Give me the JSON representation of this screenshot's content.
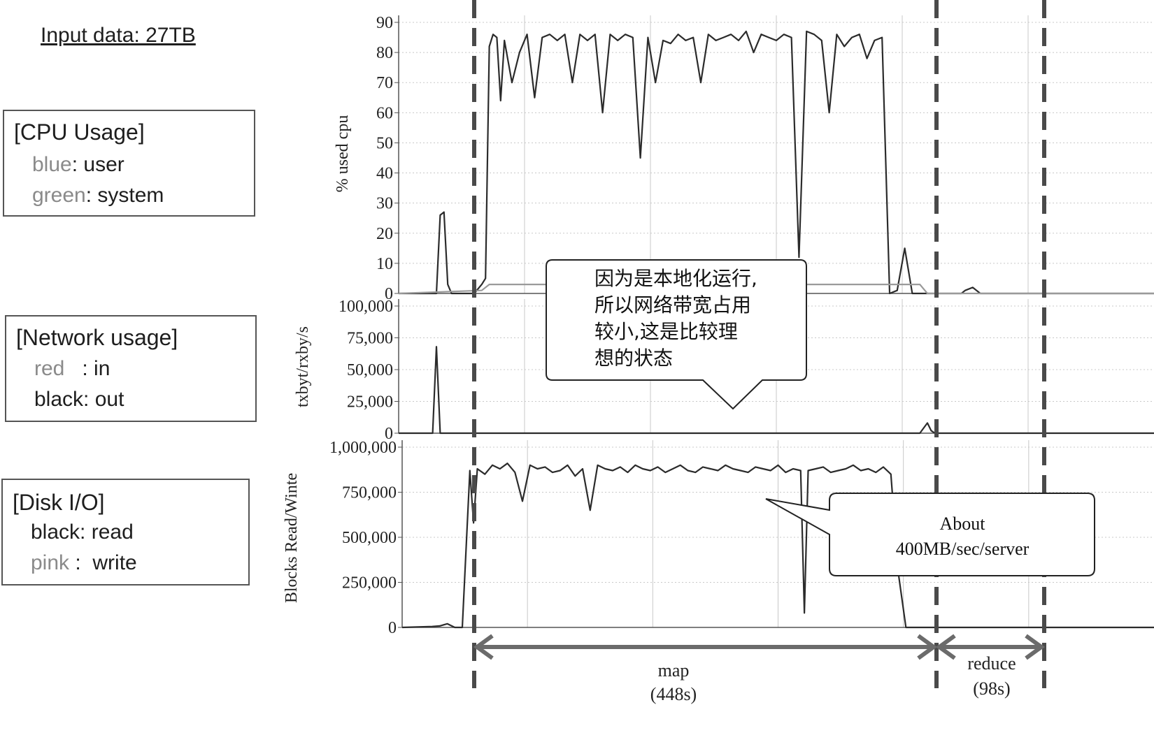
{
  "title": "Input data: 27TB",
  "legends": {
    "cpu": {
      "heading": "[CPU Usage]",
      "items": [
        {
          "color_name": "blue",
          "label": ": user"
        },
        {
          "color_name": "green",
          "label": ": system"
        }
      ]
    },
    "network": {
      "heading": "[Network usage]",
      "items": [
        {
          "color_name": "red",
          "label": "   : in"
        },
        {
          "color_name": "black",
          "label": ": out"
        }
      ]
    },
    "disk": {
      "heading": "[Disk I/O]",
      "items": [
        {
          "color_name": "black",
          "label": ": read"
        },
        {
          "color_name": "pink",
          "label": " :  write"
        }
      ]
    }
  },
  "callouts": {
    "network_note": [
      "因为是本地化运行,",
      "所以网络带宽占用",
      "较小,这是比较理",
      "想的状态"
    ],
    "disk_note": [
      "About",
      "400MB/sec/server"
    ]
  },
  "phases": {
    "map": {
      "label": "map",
      "duration": "(448s)"
    },
    "reduce": {
      "label": "reduce",
      "duration": "(98s)"
    }
  },
  "colors": {
    "line": "#2b2b2b",
    "system_line": "#9a9a9a",
    "grid": "#c8c8c8",
    "dash": "#4a4a4a",
    "arrow": "#6b6b6b"
  },
  "chart_data": [
    {
      "type": "line",
      "ylabel": "% used cpu",
      "ylim": [
        0,
        90
      ],
      "yticks": [
        "90",
        "80",
        "70",
        "60",
        "50",
        "40",
        "30",
        "20",
        "10",
        "0"
      ],
      "xlim": [
        0,
        100
      ],
      "grid": true,
      "series": [
        {
          "name": "user",
          "x": [
            0,
            5,
            5.5,
            6,
            6.5,
            7,
            8,
            10,
            11,
            11.5,
            12,
            12.5,
            13,
            13.5,
            14,
            15,
            16,
            17,
            18,
            19,
            20,
            21,
            22,
            23,
            24,
            25,
            26,
            27,
            28,
            29,
            30,
            31,
            32,
            33,
            34,
            35,
            36,
            37,
            38,
            39,
            40,
            41,
            42,
            43,
            44,
            45,
            46,
            47,
            48,
            49,
            50,
            51,
            52,
            53,
            54,
            55,
            56,
            57,
            58,
            59,
            60,
            61,
            62,
            63,
            64,
            65,
            66,
            67,
            68,
            69,
            70,
            71,
            72,
            73,
            74,
            74.5,
            75,
            76,
            77,
            78,
            79,
            80,
            81,
            82,
            83,
            84,
            85,
            86,
            87,
            88,
            89,
            90,
            91,
            92,
            93,
            94,
            95,
            96,
            97,
            98,
            99,
            100
          ],
          "y": [
            0,
            0,
            26,
            27,
            3,
            0,
            0,
            0,
            3,
            5,
            82,
            86,
            85,
            64,
            84,
            70,
            80,
            86,
            65,
            85,
            86,
            84,
            86,
            70,
            86,
            84,
            86,
            60,
            86,
            84,
            86,
            85,
            45,
            85,
            70,
            84,
            83,
            86,
            84,
            85,
            70,
            86,
            84,
            85,
            86,
            84,
            87,
            80,
            86,
            85,
            84,
            86,
            85,
            12,
            87,
            86,
            84,
            60,
            86,
            82,
            85,
            86,
            78,
            84,
            85,
            0,
            1,
            15,
            0,
            0,
            0,
            0,
            0,
            0,
            0,
            0,
            1,
            2,
            0,
            0,
            0,
            0,
            0,
            0,
            0,
            0,
            0,
            0,
            0,
            0,
            0,
            0,
            0,
            0,
            0,
            0,
            0,
            0,
            0,
            0,
            0,
            0
          ]
        },
        {
          "name": "system",
          "x": [
            0,
            11,
            12,
            13,
            52,
            53,
            54,
            69,
            70,
            100
          ],
          "y": [
            0,
            1,
            3,
            3,
            3,
            3,
            3,
            3,
            0,
            0
          ]
        }
      ]
    },
    {
      "type": "line",
      "ylabel": "txbyt/rxby/s",
      "ylim": [
        0,
        100000
      ],
      "yticks": [
        "100,000",
        "75,000",
        "50,000",
        "25,000",
        "0"
      ],
      "xlim": [
        0,
        100
      ],
      "grid": true,
      "series": [
        {
          "name": "out",
          "x": [
            0,
            4.5,
            5,
            5.5,
            6,
            69,
            70,
            70.5,
            71,
            100
          ],
          "y": [
            0,
            0,
            68000,
            0,
            0,
            0,
            8000,
            2000,
            0,
            0
          ]
        }
      ]
    },
    {
      "type": "line",
      "ylabel": "Blocks Read/Winte",
      "ylim": [
        0,
        1000000
      ],
      "yticks": [
        "1,000,000",
        "750,000",
        "500,000",
        "250,000",
        "0"
      ],
      "xlim": [
        0,
        100
      ],
      "grid": true,
      "series": [
        {
          "name": "read",
          "x": [
            0,
            4,
            5,
            6,
            7,
            8,
            9,
            9.5,
            10,
            11,
            12,
            13,
            14,
            15,
            16,
            17,
            18,
            19,
            20,
            21,
            22,
            23,
            24,
            25,
            26,
            27,
            28,
            29,
            30,
            31,
            32,
            33,
            34,
            35,
            36,
            37,
            38,
            39,
            40,
            41,
            42,
            43,
            44,
            45,
            46,
            47,
            48,
            49,
            50,
            51,
            52,
            53,
            53.5,
            54,
            55,
            56,
            57,
            58,
            59,
            60,
            61,
            62,
            63,
            64,
            65,
            66,
            67,
            68,
            69,
            70,
            100
          ],
          "y": [
            0,
            5000,
            8000,
            20000,
            0,
            0,
            870000,
            580000,
            880000,
            850000,
            900000,
            880000,
            910000,
            860000,
            700000,
            900000,
            880000,
            890000,
            860000,
            870000,
            900000,
            840000,
            880000,
            650000,
            900000,
            880000,
            870000,
            890000,
            860000,
            900000,
            880000,
            870000,
            890000,
            860000,
            880000,
            900000,
            870000,
            860000,
            890000,
            880000,
            870000,
            900000,
            880000,
            870000,
            860000,
            890000,
            880000,
            870000,
            900000,
            860000,
            880000,
            870000,
            80000,
            870000,
            880000,
            890000,
            860000,
            870000,
            880000,
            900000,
            870000,
            880000,
            860000,
            890000,
            850000,
            300000,
            0,
            0,
            0,
            0,
            0
          ]
        }
      ]
    }
  ]
}
